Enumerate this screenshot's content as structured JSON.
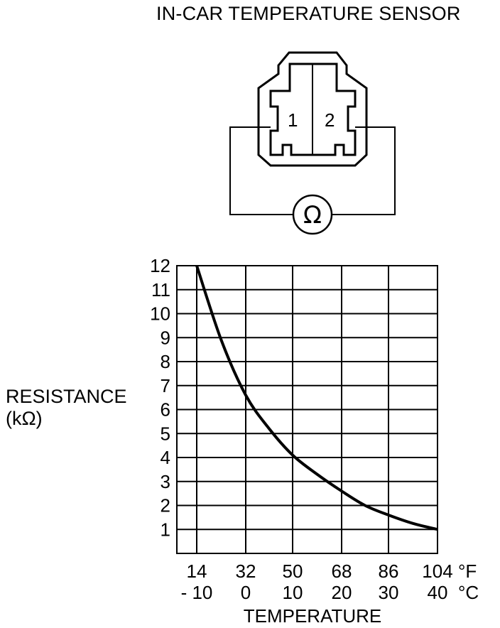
{
  "title": "IN-CAR TEMPERATURE SENSOR",
  "connector": {
    "pin_labels": [
      "1",
      "2"
    ],
    "meter_symbol": "Ω"
  },
  "chart_data": {
    "type": "line",
    "ylabel": [
      "RESISTANCE",
      "(kΩ)"
    ],
    "xlabel": "TEMPERATURE",
    "y_ticks": [
      "1",
      "2",
      "3",
      "4",
      "5",
      "6",
      "7",
      "8",
      "9",
      "10",
      "11",
      "12"
    ],
    "ylim": [
      0,
      12
    ],
    "x_ticks_f": [
      "14",
      "32",
      "50",
      "68",
      "86",
      "104"
    ],
    "x_ticks_c": [
      "- 10",
      "0",
      "10",
      "20",
      "30",
      "40"
    ],
    "unit_f": "°F",
    "unit_c": "°C",
    "grid": true,
    "series": [
      {
        "x_c": [
          -10,
          -5,
          0,
          5,
          10,
          15,
          20,
          25,
          30,
          35,
          40
        ],
        "y": [
          12.0,
          8.9,
          6.6,
          5.2,
          4.1,
          3.3,
          2.6,
          2.0,
          1.6,
          1.25,
          1.0
        ]
      }
    ]
  }
}
